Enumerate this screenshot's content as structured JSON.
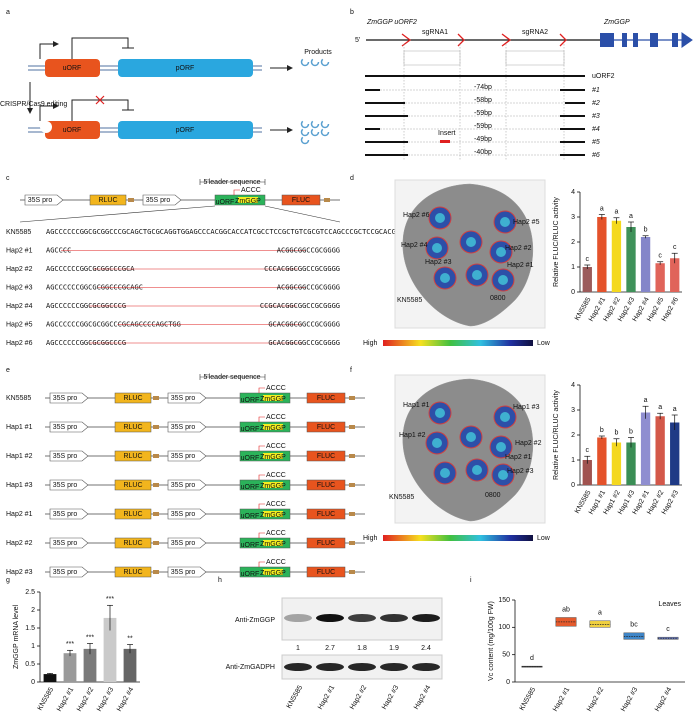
{
  "panel_labels": [
    "a",
    "b",
    "c",
    "d",
    "e",
    "f",
    "g",
    "h",
    "i"
  ],
  "a": {
    "uorf": "uORF",
    "porf": "pORF",
    "products": "Products",
    "editing": "CRISPR/Cas9 editing"
  },
  "b": {
    "gene_uorf": "ZmGGP uORF2",
    "five": "5'",
    "gene": "ZmGGP",
    "sgrna": [
      "sgRNA1",
      "sgRNA2"
    ],
    "rows": [
      "uORF2",
      "#1",
      "#2",
      "#3",
      "#4",
      "#5",
      "#6"
    ],
    "deletions": [
      "-74bp",
      "-58bp",
      "-59bp",
      "-59bp",
      "-49bp",
      "-40bp"
    ],
    "insert": "Insert"
  },
  "c": {
    "promoter": "35S pro",
    "rluc": "RLUC",
    "fluc": "FLUC",
    "leader": "5'leader sequence",
    "uorf": "uORF",
    "porf": "ZmGGP",
    "accc": "ACCC",
    "rows": [
      {
        "name": "KN5585",
        "left": "AGCCCCCCGGCGCGGCCCGCAGCTGCGCAGGTGGAGCCCACGGCACCATCGCCTCCGCTGTCGCGTCCAGCCCGCTCCGCACGGCGGCCGCGGGG"
      },
      {
        "name": "Hap2 #1",
        "left": "AGCCCC",
        "right": "ACGGCGGCCGCGGGG"
      },
      {
        "name": "Hap2 #2",
        "left": "AGCCCCCCGGCGCGGCCCGCA",
        "right": "CCCACGGCGGCCGCGGGG"
      },
      {
        "name": "Hap2 #3",
        "left": "AGCCCCCCGGCGCGGCCCGCAGC",
        "right": "ACGGCGGCCGCGGGG"
      },
      {
        "name": "Hap2 #4",
        "left": "AGCCCCCCGGCGCGGCCCG",
        "right": "CCGCACGGCGGCCGCGGGG"
      },
      {
        "name": "Hap2 #5",
        "left": "AGCCCCCCGGCGCGGCCCGCAGCCCCAGCTGG",
        "right": "GCACGGCGGCCGCGGGG"
      },
      {
        "name": "Hap2 #6",
        "left": "AGCCCCCCGGCGCGGCCCG",
        "right": "GCACGGCGGCCGCGGGG"
      }
    ]
  },
  "d": {
    "leaf_labels": [
      "Hap2 #6",
      "Hap2 #5",
      "Hap2 #4",
      "Hap2 #3",
      "Hap2 #2",
      "Hap2 #1",
      "KN5585",
      "0800"
    ],
    "scale": [
      "High",
      "Low"
    ]
  },
  "e": {
    "rows": [
      "KN5585",
      "Hap1 #1",
      "Hap1 #2",
      "Hap1 #3",
      "Hap2 #1",
      "Hap2 #2",
      "Hap2 #3"
    ]
  },
  "f": {
    "leaf_labels": [
      "Hap1 #1",
      "Hap1 #3",
      "Hap1 #2",
      "Hap2 #2",
      "Hap2 #1",
      "Hap2 #3",
      "KN5585",
      "0800"
    ],
    "scale": [
      "High",
      "Low"
    ]
  },
  "h": {
    "antibodies": [
      "Anti-ZmGGP",
      "Anti-ZmGADPH"
    ],
    "ratios": [
      1,
      2.7,
      1.8,
      1.9,
      2.4
    ],
    "lanes": [
      "KN5585",
      "Hap2 #1",
      "Hap2 #2",
      "Hap2 #3",
      "Hap2 #4"
    ]
  },
  "chart_data": [
    {
      "type": "bar",
      "y_label": "Relative FLUC/RLUC activity",
      "categories": [
        "KN5585",
        "Hap2 #1",
        "Hap2 #2",
        "Hap2 #3",
        "Hap2 #4",
        "Hap2 #5",
        "Hap2 #6"
      ],
      "values": [
        1.0,
        3.0,
        2.85,
        2.6,
        2.2,
        1.15,
        1.35
      ],
      "errors": [
        0.08,
        0.1,
        0.12,
        0.2,
        0.05,
        0.06,
        0.2
      ],
      "annotations": [
        "c",
        "a",
        "a",
        "a",
        "b",
        "c",
        "c"
      ],
      "colors": [
        "#9b5a5a",
        "#e4522b",
        "#f4d91e",
        "#3f925a",
        "#8486c9",
        "#e0645a",
        "#e0645a"
      ],
      "ylim": [
        0,
        4
      ],
      "yticks": [
        0,
        1,
        2,
        3,
        4
      ]
    },
    {
      "type": "bar",
      "y_label": "Relative FLUC/RLUC activity",
      "categories": [
        "KN5585",
        "Hap1 #1",
        "Hap1 #2",
        "Hap1 #3",
        "Hap2 #1",
        "Hap2 #2",
        "Hap2 #3"
      ],
      "values": [
        1.0,
        1.9,
        1.7,
        1.7,
        2.9,
        2.75,
        2.5
      ],
      "errors": [
        0.15,
        0.06,
        0.15,
        0.2,
        0.25,
        0.12,
        0.3
      ],
      "annotations": [
        "c",
        "b",
        "b",
        "b",
        "a",
        "a",
        "a"
      ],
      "colors": [
        "#a0524f",
        "#e4522b",
        "#f4d820",
        "#3a8e55",
        "#8f8ed0",
        "#d3584a",
        "#1f3a86"
      ],
      "ylim": [
        0,
        4
      ],
      "yticks": [
        0,
        1,
        2,
        3,
        4
      ]
    },
    {
      "type": "bar",
      "y_label": "ZmGGP mRNA level",
      "categories": [
        "KN5585",
        "Hap2 #1",
        "Hap2 #2",
        "Hap2 #3",
        "Hap2 #4"
      ],
      "values": [
        0.22,
        0.8,
        0.92,
        1.78,
        0.92
      ],
      "errors": [
        0.02,
        0.08,
        0.15,
        0.35,
        0.12
      ],
      "annotations": [
        "",
        "***",
        "***",
        "***",
        "**"
      ],
      "colors": [
        "#111111",
        "#9a9a9a",
        "#7a7a7a",
        "#cacaca",
        "#666666"
      ],
      "ylim": [
        0,
        2.5
      ],
      "yticks": [
        0,
        0.5,
        1.0,
        1.5,
        2.0,
        2.5
      ]
    },
    {
      "type": "box",
      "title": "Leaves",
      "y_label": "Vc content (mg/100g FW)",
      "categories": [
        "KN5585",
        "Hap2 #1",
        "Hap2 #2",
        "Hap2 #3",
        "Hap2 #4"
      ],
      "values": [
        28,
        110,
        105,
        83,
        80
      ],
      "q1": [
        27,
        102,
        100,
        78,
        78
      ],
      "q3": [
        29,
        118,
        112,
        90,
        82
      ],
      "annotations": [
        "d",
        "ab",
        "a",
        "bc",
        "c"
      ],
      "colors": [
        "#222222",
        "#e45a2d",
        "#f0d040",
        "#3f86c8",
        "#6a7ec8"
      ],
      "ylim": [
        0,
        150
      ],
      "yticks": [
        0,
        50,
        100,
        150
      ]
    }
  ]
}
